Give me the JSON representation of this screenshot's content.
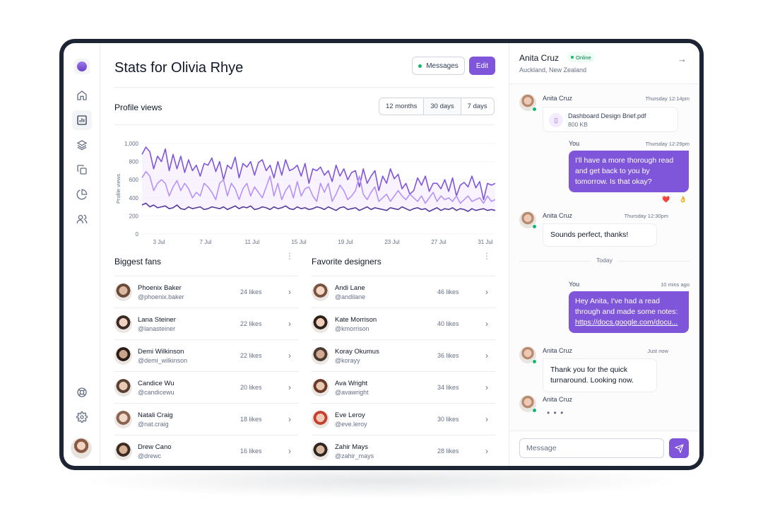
{
  "page": {
    "title": "Stats for Olivia Rhye",
    "messages_button": "Messages",
    "edit_button": "Edit"
  },
  "sidebar": {
    "items": [
      {
        "icon": "home-icon"
      },
      {
        "icon": "bar-chart-icon",
        "active": true
      },
      {
        "icon": "layers-icon"
      },
      {
        "icon": "copy-icon"
      },
      {
        "icon": "pie-chart-icon"
      },
      {
        "icon": "users-icon"
      }
    ],
    "bottom": [
      {
        "icon": "life-buoy-icon"
      },
      {
        "icon": "settings-icon"
      }
    ]
  },
  "profile_views": {
    "title": "Profile views",
    "ranges": [
      "12 months",
      "30 days",
      "7 days"
    ],
    "selected_range": "30 days"
  },
  "chart_data": {
    "type": "line",
    "ylabel": "Profile views",
    "xlabel": "",
    "ylim": [
      0,
      1000
    ],
    "yticks": [
      "0",
      "200",
      "400",
      "600",
      "800",
      "1,000"
    ],
    "xticks": [
      "3 Jul",
      "7 Jul",
      "11 Jul",
      "15 Jul",
      "19 Jul",
      "23 Jul",
      "27 Jul",
      "31 Jul"
    ],
    "grid": true,
    "series": [
      {
        "color": "#7f56d9",
        "values": [
          880,
          960,
          910,
          720,
          860,
          800,
          940,
          700,
          880,
          720,
          860,
          680,
          820,
          700,
          760,
          640,
          780,
          760,
          840,
          690,
          800,
          600,
          760,
          720,
          850,
          620,
          780,
          740,
          800,
          650,
          790,
          820,
          700,
          760,
          620,
          800,
          650,
          820,
          700,
          720,
          760,
          640,
          780,
          560,
          720,
          700,
          740,
          650,
          700,
          580,
          760,
          640,
          720,
          600,
          680,
          700,
          520,
          720,
          560,
          640,
          700,
          480,
          640,
          560,
          720,
          610,
          660,
          500,
          560,
          440,
          480,
          620,
          540,
          640,
          470,
          560,
          560,
          500,
          600,
          470,
          620,
          420,
          540,
          570,
          520,
          640,
          510,
          580,
          380,
          560,
          540,
          560
        ]
      },
      {
        "color": "#b692f6",
        "values": [
          620,
          690,
          640,
          480,
          560,
          600,
          560,
          420,
          520,
          590,
          480,
          560,
          500,
          400,
          460,
          420,
          560,
          520,
          460,
          380,
          560,
          600,
          420,
          560,
          500,
          380,
          500,
          560,
          420,
          520,
          460,
          400,
          520,
          640,
          420,
          560,
          380,
          480,
          540,
          400,
          580,
          420,
          500,
          520,
          420,
          360,
          560,
          460,
          560,
          360,
          440,
          540,
          480,
          380,
          420,
          480,
          640,
          440,
          380,
          460,
          520,
          360,
          400,
          440,
          360,
          420,
          480,
          420,
          380,
          440,
          400,
          360,
          420,
          340,
          400,
          460,
          360,
          420,
          380,
          400,
          360,
          420,
          340,
          380,
          420,
          360,
          380,
          400,
          340,
          420,
          360,
          380
        ]
      },
      {
        "color": "#53389e",
        "values": [
          320,
          340,
          300,
          320,
          290,
          300,
          310,
          280,
          290,
          320,
          280,
          270,
          300,
          280,
          290,
          300,
          270,
          280,
          300,
          290,
          280,
          300,
          270,
          290,
          310,
          280,
          300,
          290,
          310,
          270,
          280,
          300,
          290,
          270,
          300,
          280,
          290,
          310,
          280,
          270,
          300,
          280,
          290,
          270,
          280,
          300,
          290,
          270,
          300,
          280,
          260,
          290,
          300,
          270,
          280,
          290,
          260,
          280,
          300,
          270,
          290,
          280,
          270,
          260,
          290,
          280,
          270,
          300,
          280,
          260,
          280,
          290,
          270,
          280,
          250,
          270,
          290,
          260,
          280,
          270,
          290,
          260,
          280,
          270,
          250,
          280,
          260,
          270,
          280,
          260,
          270,
          260
        ]
      }
    ]
  },
  "biggest_fans": {
    "title": "Biggest fans",
    "rows": [
      {
        "name": "Phoenix Baker",
        "handle": "@phoenix.baker",
        "likes": "24 likes"
      },
      {
        "name": "Lana Steiner",
        "handle": "@lanasteiner",
        "likes": "22 likes"
      },
      {
        "name": "Demi Wilkinson",
        "handle": "@demi_wilkinson",
        "likes": "22 likes"
      },
      {
        "name": "Candice Wu",
        "handle": "@candicewu",
        "likes": "20 likes"
      },
      {
        "name": "Natali Craig",
        "handle": "@nat.craig",
        "likes": "18 likes"
      },
      {
        "name": "Drew Cano",
        "handle": "@drewc",
        "likes": "16 likes"
      }
    ]
  },
  "favorite_designers": {
    "title": "Favorite designers",
    "rows": [
      {
        "name": "Andi Lane",
        "handle": "@andilane",
        "likes": "46 likes"
      },
      {
        "name": "Kate Morrison",
        "handle": "@kmorrison",
        "likes": "40 likes"
      },
      {
        "name": "Koray Okumus",
        "handle": "@korayy",
        "likes": "36 likes"
      },
      {
        "name": "Ava Wright",
        "handle": "@avawright",
        "likes": "34 likes"
      },
      {
        "name": "Eve Leroy",
        "handle": "@eve.leroy",
        "likes": "30 likes"
      },
      {
        "name": "Zahir Mays",
        "handle": "@zahir_mays",
        "likes": "28 likes"
      }
    ]
  },
  "chat": {
    "name": "Anita Cruz",
    "status": "Online",
    "location": "Auckland, New Zealand",
    "divider": "Today",
    "messages": [
      {
        "sender": "Anita Cruz",
        "time": "Thursday 12:14pm",
        "file_name": "Dashboard Design Brief.pdf",
        "file_size": "800 KB"
      },
      {
        "sender": "You",
        "time": "Thursday 12:29pm",
        "text": "I'll have a more thorough read and get back to you by tomorrow. Is that okay?",
        "reactions": [
          "❤️",
          "👌"
        ]
      },
      {
        "sender": "Anita Cruz",
        "time": "Thursday 12:30pm",
        "text": "Sounds perfect, thanks!"
      },
      {
        "sender": "You",
        "time": "10 mins ago",
        "text": "Hey Anita, I've had a read through and made some notes:",
        "link": "https://docs.google.com/docu..."
      },
      {
        "sender": "Anita Cruz",
        "time": "Just now",
        "text": "Thank you for the quick turnaround. Looking now."
      },
      {
        "sender": "Anita Cruz",
        "typing": "• • •"
      }
    ],
    "input_placeholder": "Message"
  }
}
